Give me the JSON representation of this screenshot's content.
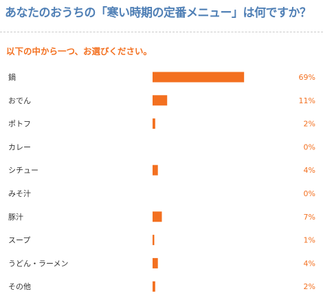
{
  "page": {
    "title": "あなたのおうちの「寒い時期の定番メニュー」は何ですか？",
    "instruction": "以下の中から一つ、お選びください。"
  },
  "colors": {
    "title": "#4f7fb5",
    "accent": "#f37020",
    "text": "#333333",
    "divider": "#c9c9c9"
  },
  "chart_data": {
    "type": "bar",
    "orientation": "horizontal",
    "categories": [
      "鍋",
      "おでん",
      "ポトフ",
      "カレー",
      "シチュー",
      "みそ汁",
      "豚汁",
      "スープ",
      "うどん・ラーメン",
      "その他"
    ],
    "values": [
      69,
      11,
      2,
      0,
      4,
      0,
      7,
      1,
      4,
      2
    ],
    "value_labels": [
      "69%",
      "11%",
      "2%",
      "0%",
      "4%",
      "0%",
      "7%",
      "1%",
      "4%",
      "2%"
    ],
    "unit": "%",
    "xlim": [
      0,
      100
    ],
    "grid": false,
    "legend": "none",
    "color": "#f37020"
  }
}
